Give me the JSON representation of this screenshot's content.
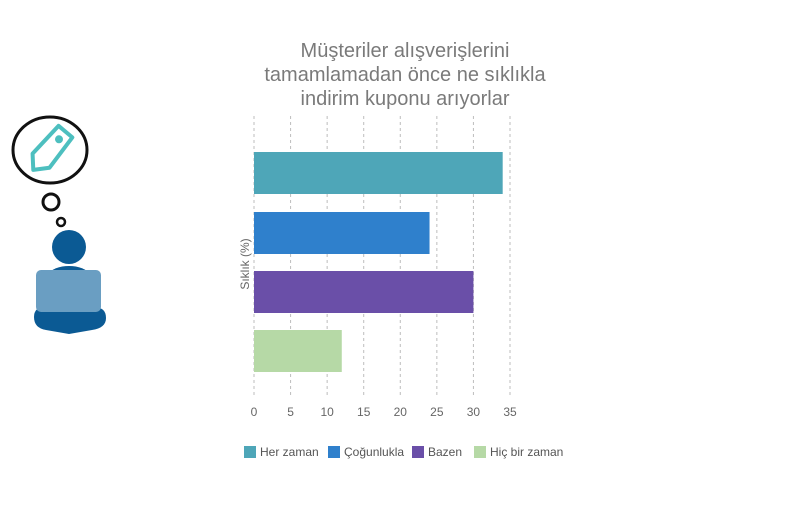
{
  "chart_data": {
    "type": "bar",
    "orientation": "horizontal",
    "title_lines": [
      "Müşteriler alışverişlerini",
      "tamamlamadan önce ne sıklıkla",
      "indirim kuponu arıyorlar"
    ],
    "ylabel": "Sıklık (%)",
    "xlabel": "",
    "xlim": [
      0,
      35
    ],
    "x_ticks": [
      0,
      5,
      10,
      15,
      20,
      25,
      30,
      35
    ],
    "grid": "vertical-dashed",
    "legend_placement": "bottom",
    "categories": [
      "Her zaman",
      "Çoğunlukla",
      "Bazen",
      "Hiç bir zaman"
    ],
    "values": [
      34,
      24,
      30,
      12
    ],
    "colors": [
      "#4ea6b8",
      "#2f80cc",
      "#6a4fa8",
      "#b6d9a6"
    ]
  },
  "illustration": {
    "person_color": "#0b5a94",
    "laptop_color": "#6a9ec2",
    "tag_color": "#4dbfbf",
    "icon_name": "tag-icon"
  }
}
